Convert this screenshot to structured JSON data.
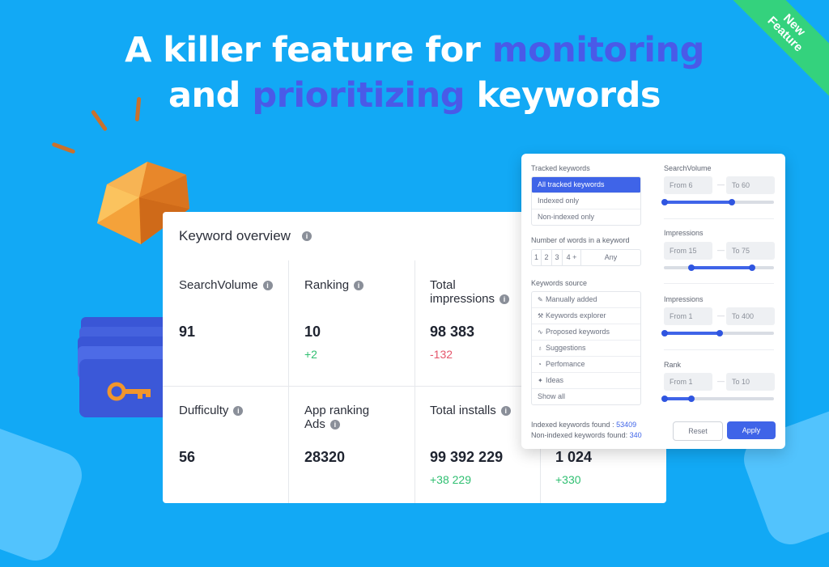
{
  "hero": {
    "line1_pre": "A killer feature for ",
    "line1_accent": "monitoring",
    "line2_pre": "and ",
    "line2_accent": "prioritizing",
    "line2_post": " keywords"
  },
  "ribbon": {
    "line1": "New",
    "line2": "Feature"
  },
  "overview": {
    "title": "Keyword overview",
    "metrics": [
      {
        "label": "SearchVolume",
        "value": "91",
        "delta": ""
      },
      {
        "label": "Ranking",
        "value": "10",
        "delta": "+2"
      },
      {
        "label": "Total impressions",
        "value": "98 383",
        "delta": "-132"
      },
      {
        "label": "Dufficulty",
        "value": "56",
        "delta": ""
      },
      {
        "label": "App ranking Ads",
        "value": "28320",
        "delta": ""
      },
      {
        "label": "Total installs",
        "value": "99 392 229",
        "delta": "+38 229"
      },
      {
        "label": "",
        "value": "1 024",
        "delta": "+330"
      }
    ]
  },
  "filter": {
    "tracked": {
      "title": "Tracked keywords",
      "options": [
        "All tracked keywords",
        "Indexed only",
        "Non-indexed only"
      ],
      "selected": "All tracked keywords"
    },
    "words": {
      "title": "Number of words in a keyword",
      "options": [
        "1",
        "2",
        "3",
        "4 +",
        "Any"
      ]
    },
    "source": {
      "title": "Keywords source",
      "options": [
        {
          "label": "Manually added",
          "icon": "pencil-icon"
        },
        {
          "label": "Keywords explorer",
          "icon": "wrench-icon"
        },
        {
          "label": "Proposed keywords",
          "icon": "trend-icon"
        },
        {
          "label": "Suggestions",
          "icon": "bulb-icon"
        },
        {
          "label": "Perfomance",
          "icon": "gauge-icon"
        },
        {
          "label": "Ideas",
          "icon": "star-icon"
        },
        {
          "label": "Show all",
          "icon": ""
        }
      ]
    },
    "ranges": [
      {
        "title": "SearchVolume",
        "from": "From 6",
        "to": "To 60",
        "start": 0.0,
        "end": 0.62
      },
      {
        "title": "Impressions",
        "from": "From 15",
        "to": "To 75",
        "start": 0.24,
        "end": 0.8
      },
      {
        "title": "Impressions",
        "from": "From 1",
        "to": "To 400",
        "start": 0.0,
        "end": 0.51
      },
      {
        "title": "Rank",
        "from": "From 1",
        "to": "To 10",
        "start": 0.0,
        "end": 0.25
      }
    ],
    "found": {
      "indexed_label": "Indexed keywords found :",
      "indexed_value": "53409",
      "nonindexed_label": "Non-indexed keywords found:",
      "nonindexed_value": "340"
    },
    "reset_label": "Reset",
    "apply_label": "Apply"
  },
  "colors": {
    "background": "#12a9f5",
    "accent": "#4a5ae8",
    "ribbon": "#34d27d",
    "button": "#3f64e8"
  }
}
